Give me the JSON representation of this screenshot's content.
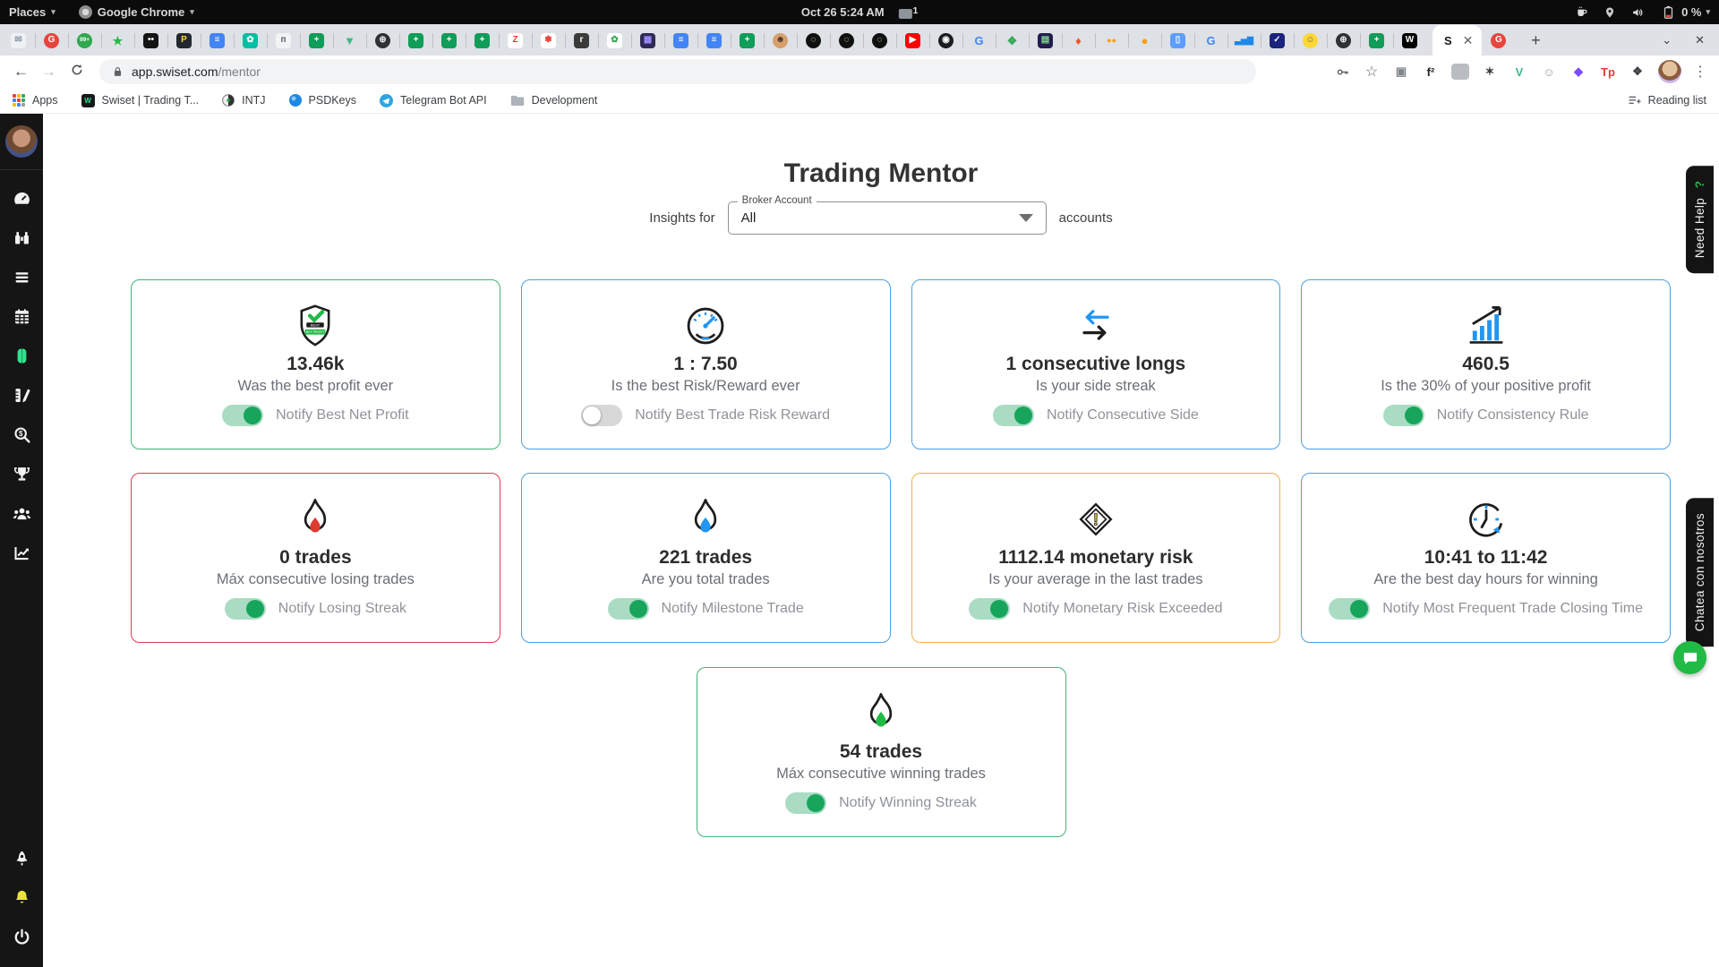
{
  "desktop": {
    "places": "Places",
    "app_menu": "Google Chrome",
    "clock": "Oct 26  5:24 AM",
    "input_badge": "1",
    "battery_pct": "0 %",
    "tray_icons": [
      "coffee-mug-icon",
      "location-pin-icon",
      "volume-icon",
      "battery-icon"
    ]
  },
  "tabs": {
    "active_glyph": "S",
    "pinned": [
      {
        "s": "sq",
        "c": "#eef1f4",
        "f": "#8a94a6",
        "g": "✉"
      },
      {
        "s": "ci",
        "c": "#e8453c",
        "f": "#ffffff",
        "g": "G"
      },
      {
        "s": "ci",
        "c": "#2fa84f",
        "f": "#ffffff",
        "g": "99+"
      },
      {
        "s": "no",
        "c": "transparent",
        "f": "#21ba45",
        "g": "★"
      },
      {
        "s": "sq",
        "c": "#141414",
        "f": "#ffffff",
        "g": "••"
      },
      {
        "s": "sq",
        "c": "#23272e",
        "f": "#ffd43b",
        "g": "P"
      },
      {
        "s": "sq",
        "c": "#4285f4",
        "f": "#ffffff",
        "g": "≡"
      },
      {
        "s": "sq",
        "c": "#00bfa5",
        "f": "#ffffff",
        "g": "✿"
      },
      {
        "s": "sq",
        "c": "#f1f3f4",
        "f": "#5f6368",
        "g": "п"
      },
      {
        "s": "sq",
        "c": "#0f9d58",
        "f": "#ffffff",
        "g": "+"
      },
      {
        "s": "no",
        "c": "transparent",
        "f": "#41b883",
        "g": "▼"
      },
      {
        "s": "ci",
        "c": "#2f3136",
        "f": "#e8eaed",
        "g": "⊕"
      },
      {
        "s": "sq",
        "c": "#0f9d58",
        "f": "#ffffff",
        "g": "+"
      },
      {
        "s": "sq",
        "c": "#0f9d58",
        "f": "#ffffff",
        "g": "+"
      },
      {
        "s": "sq",
        "c": "#0f9d58",
        "f": "#ffffff",
        "g": "+"
      },
      {
        "s": "sq",
        "c": "#ffffff",
        "f": "#e53935",
        "g": "Z"
      },
      {
        "s": "sq",
        "c": "#ffffff",
        "f": "#e8453c",
        "g": "✽"
      },
      {
        "s": "sq",
        "c": "#3a3a3a",
        "f": "#ffffff",
        "g": "r"
      },
      {
        "s": "sq",
        "c": "#ffffff",
        "f": "#2fa84f",
        "g": "✿"
      },
      {
        "s": "sq",
        "c": "#2d2b55",
        "f": "#9f8bff",
        "g": "▦"
      },
      {
        "s": "sq",
        "c": "#4285f4",
        "f": "#ffffff",
        "g": "≡"
      },
      {
        "s": "sq",
        "c": "#4285f4",
        "f": "#ffffff",
        "g": "≡"
      },
      {
        "s": "sq",
        "c": "#0f9d58",
        "f": "#ffffff",
        "g": "+"
      },
      {
        "s": "ci",
        "c": "#d7a06b",
        "f": "#4e342e",
        "g": "☻"
      },
      {
        "s": "ci",
        "c": "#101010",
        "f": "#ffffff",
        "g": "◌"
      },
      {
        "s": "ci",
        "c": "#101010",
        "f": "#ffffff",
        "g": "◌"
      },
      {
        "s": "ci",
        "c": "#101010",
        "f": "#ffffff",
        "g": "◌"
      },
      {
        "s": "sq",
        "c": "#ff0000",
        "f": "#ffffff",
        "g": "▶"
      },
      {
        "s": "ci",
        "c": "#191b1f",
        "f": "#ffffff",
        "g": "◉"
      },
      {
        "s": "no",
        "c": "transparent",
        "f": "#4285f4",
        "g": "G"
      },
      {
        "s": "no",
        "c": "transparent",
        "f": "#34a853",
        "g": "❖"
      },
      {
        "s": "sq",
        "c": "#241d4f",
        "f": "#7ee08a",
        "g": "▤"
      },
      {
        "s": "no",
        "c": "transparent",
        "f": "#f4511e",
        "g": "♦"
      },
      {
        "s": "no",
        "c": "transparent",
        "f": "#f79e1b",
        "g": "●●"
      },
      {
        "s": "no",
        "c": "transparent",
        "f": "#f79e1b",
        "g": "●"
      },
      {
        "s": "sq",
        "c": "#5c9eff",
        "f": "#ffffff",
        "g": "▯"
      },
      {
        "s": "no",
        "c": "transparent",
        "f": "#4285f4",
        "g": "G"
      },
      {
        "s": "no",
        "c": "transparent",
        "f": "#1e88e5",
        "g": "▃▅▇"
      },
      {
        "s": "sq",
        "c": "#1a237e",
        "f": "#ffffff",
        "g": "✓"
      },
      {
        "s": "ci",
        "c": "#fdd835",
        "f": "#795548",
        "g": "☺"
      },
      {
        "s": "ci",
        "c": "#2f3136",
        "f": "#e8eaed",
        "g": "⊕"
      },
      {
        "s": "sq",
        "c": "#0f9d58",
        "f": "#ffffff",
        "g": "+"
      },
      {
        "s": "sq",
        "c": "#000000",
        "f": "#ffffff",
        "g": "W"
      }
    ],
    "after_active": {
      "s": "ci",
      "c": "#e8453c",
      "f": "#ffffff",
      "g": "G"
    }
  },
  "toolbar": {
    "url_host": "app.swiset.com",
    "url_path": "/mentor",
    "extension_icons": [
      {
        "n": "screen-card-icon",
        "c": "transparent",
        "f": "#80868b",
        "g": "▣"
      },
      {
        "n": "f2-icon",
        "c": "transparent",
        "f": "#202124",
        "g": "f²"
      },
      {
        "n": "gray-extension-icon",
        "c": "#b9bdc2",
        "f": "#b9bdc2",
        "g": "■"
      },
      {
        "n": "claw-icon",
        "c": "transparent",
        "f": "#3c4043",
        "g": "✶"
      },
      {
        "n": "vue-devtools-icon",
        "c": "transparent",
        "f": "#41b883",
        "g": "V"
      },
      {
        "n": "smiley-extension-icon",
        "c": "transparent",
        "f": "#9aa0a6",
        "g": "☺"
      },
      {
        "n": "purple-diamond-icon",
        "c": "transparent",
        "f": "#7c4dff",
        "g": "◆"
      },
      {
        "n": "tp-icon",
        "c": "transparent",
        "f": "#e53935",
        "g": "Tp"
      },
      {
        "n": "puzzle-extension-icon",
        "c": "transparent",
        "f": "#3c4043",
        "g": "❖"
      }
    ]
  },
  "bookmarks": {
    "items": [
      {
        "label": "Apps",
        "icon": "apps-grid"
      },
      {
        "label": "Swiset | Trading T...",
        "icon": "swiset"
      },
      {
        "label": "INTJ",
        "icon": "intj"
      },
      {
        "label": "PSDKeys",
        "icon": "psdkeys"
      },
      {
        "label": "Telegram Bot API",
        "icon": "telegram"
      },
      {
        "label": "Development",
        "icon": "folder"
      }
    ],
    "reading_list": "Reading list"
  },
  "sidebar": {
    "items": [
      {
        "icon": "gauge",
        "active": false
      },
      {
        "icon": "binoculars",
        "active": false
      },
      {
        "icon": "list",
        "active": false
      },
      {
        "icon": "calendar",
        "active": false
      },
      {
        "icon": "brain",
        "active": true
      },
      {
        "icon": "design-tools",
        "active": false
      },
      {
        "icon": "search-dollar",
        "active": false
      },
      {
        "icon": "trophy",
        "active": false
      },
      {
        "icon": "users",
        "active": false
      },
      {
        "icon": "chart-line",
        "active": false
      }
    ],
    "bottom": [
      {
        "icon": "rocket"
      },
      {
        "icon": "bell"
      },
      {
        "icon": "power"
      }
    ],
    "active_color": "#2fe38a",
    "bell_color": "#e8e337"
  },
  "page": {
    "title": "Trading Mentor",
    "insights_prefix": "Insights for",
    "insights_suffix": "accounts",
    "broker_label": "Broker Account",
    "broker_value": "All",
    "need_help": "Need Help",
    "need_help_mark": "?",
    "chat_label": "Chatea con nosotros",
    "accent_green": "#21ba45",
    "cards": [
      {
        "icon": "shield",
        "border": "#40b377",
        "value": "13.46k",
        "subtitle": "Was the best profit ever",
        "toggle_label": "Notify Best Net Profit",
        "toggle_on": true
      },
      {
        "icon": "gauge",
        "border": "#4f9fe0",
        "value": "1 : 7.50",
        "subtitle": "Is the best Risk/Reward ever",
        "toggle_label": "Notify Best Trade Risk Reward",
        "toggle_on": false
      },
      {
        "icon": "arrows",
        "border": "#4f9fe0",
        "value": "1 consecutive longs",
        "subtitle": "Is your side streak",
        "toggle_label": "Notify Consecutive Side",
        "toggle_on": true
      },
      {
        "icon": "chart",
        "border": "#4f9fe0",
        "value": "460.5",
        "subtitle": "Is the 30% of your positive profit",
        "toggle_label": "Notify Consistency Rule",
        "toggle_on": true
      },
      {
        "icon": "flame",
        "flame_color": "#e0392f",
        "border": "#e23a55",
        "value": "0 trades",
        "subtitle": "Máx consecutive losing trades",
        "toggle_label": "Notify Losing Streak",
        "toggle_on": true
      },
      {
        "icon": "flame",
        "flame_color": "#2196f3",
        "border": "#4f9fe0",
        "value": "221 trades",
        "subtitle": "Are you total trades",
        "toggle_label": "Notify Milestone Trade",
        "toggle_on": true
      },
      {
        "icon": "diamond",
        "border": "#f2b04c",
        "value": "1112.14 monetary risk",
        "subtitle": "Is your average in the last trades",
        "toggle_label": "Notify Monetary Risk Exceeded",
        "toggle_on": true
      },
      {
        "icon": "clock",
        "border": "#4f9fe0",
        "value": "10:41 to 11:42",
        "subtitle": "Are the best day hours for winning",
        "toggle_label": "Notify Most Frequent Trade Closing Time",
        "toggle_on": true
      },
      {
        "icon": "flame",
        "flame_color": "#21ba45",
        "border": "#40b377",
        "value": "54 trades",
        "subtitle": "Máx consecutive winning trades",
        "toggle_label": "Notify Winning Streak",
        "toggle_on": true
      }
    ]
  }
}
